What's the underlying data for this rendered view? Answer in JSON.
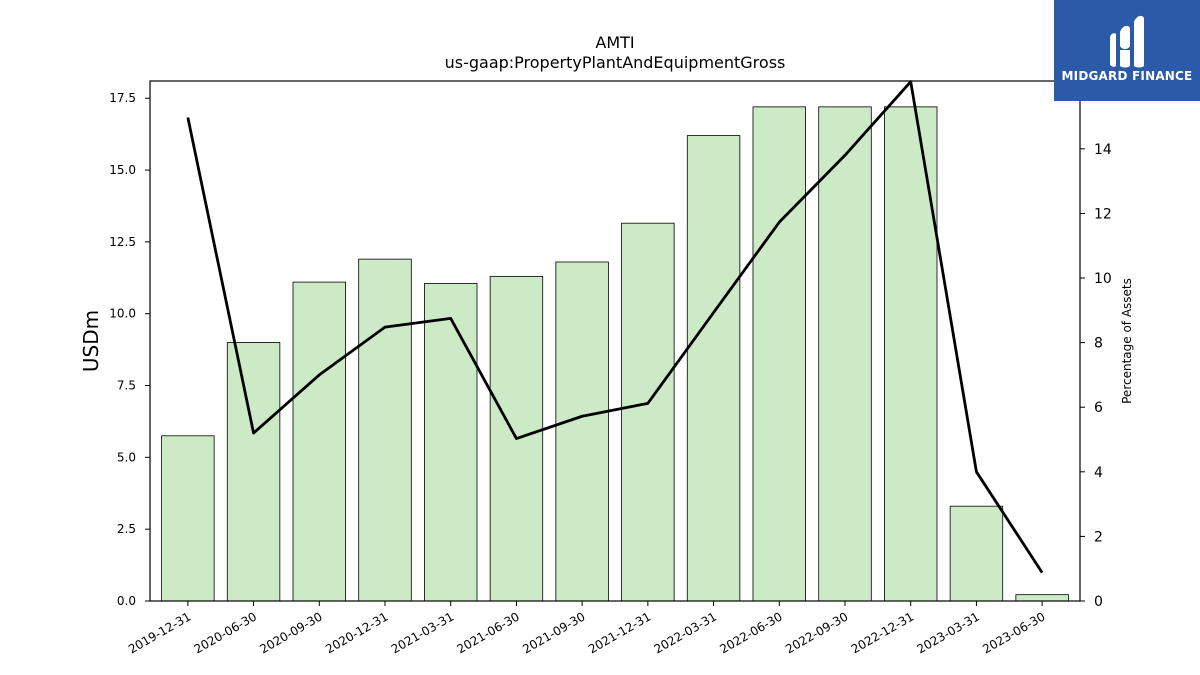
{
  "chart_data": {
    "type": "bar",
    "title": "AMTI",
    "subtitle": "us-gaap:PropertyPlantAndEquipmentGross",
    "ylabel": "USDm",
    "y2label": "Percentage of Assets",
    "categories": [
      "2019-12-31",
      "2020-06-30",
      "2020-09-30",
      "2020-12-31",
      "2021-03-31",
      "2021-06-30",
      "2021-09-30",
      "2021-12-31",
      "2022-03-31",
      "2022-06-30",
      "2022-09-30",
      "2022-12-31",
      "2023-03-31",
      "2023-06-30"
    ],
    "ylim": [
      0,
      18.1
    ],
    "y2lim": [
      0,
      16.1
    ],
    "yticks": [
      "0.0",
      "2.5",
      "5.0",
      "7.5",
      "10.0",
      "12.5",
      "15.0",
      "17.5"
    ],
    "y2ticks": [
      "0",
      "2",
      "4",
      "6",
      "8",
      "10",
      "12",
      "14",
      "16"
    ],
    "series": [
      {
        "kind": "bar",
        "values": [
          5.75,
          9.0,
          11.1,
          11.9,
          11.05,
          11.3,
          11.8,
          13.15,
          16.2,
          17.2,
          17.2,
          17.2,
          3.3,
          0.22
        ]
      },
      {
        "kind": "line",
        "axis": "right",
        "values": [
          14.97,
          5.2,
          7.0,
          8.48,
          8.75,
          5.03,
          5.72,
          6.12,
          8.93,
          11.73,
          13.8,
          16.08,
          4.0,
          0.88
        ]
      }
    ],
    "colors": {
      "bar_fill": "#cdeac7",
      "bar_edge": "#000000",
      "line": "#000000"
    },
    "grid": false
  },
  "logo": {
    "text": "MIDGARD FINANCE",
    "color": "#2b5aa8"
  }
}
